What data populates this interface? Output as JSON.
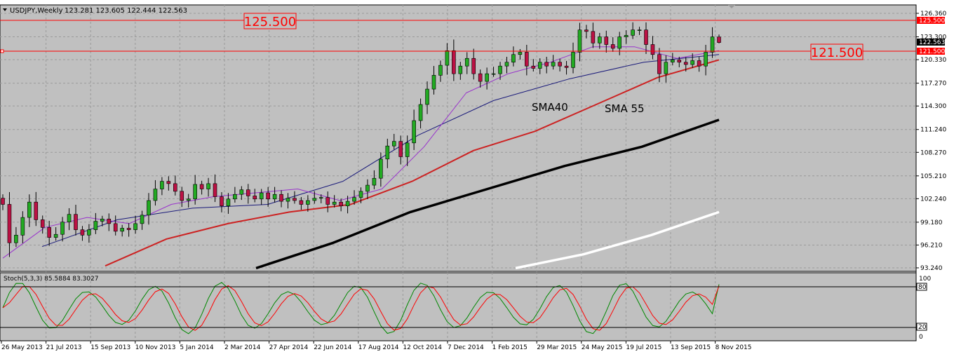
{
  "header": {
    "symbol_label": "USDJPY,Weekly",
    "ohlc_label": "123.281 123.605 122.444 122.563"
  },
  "annotations": {
    "line_high": "125.500",
    "line_low": "121.500",
    "sma40_label": "SMA40",
    "sma55_label": "SMA 55"
  },
  "price_axis": {
    "ticks": [
      "126.360",
      "123.300",
      "120.330",
      "117.270",
      "114.300",
      "111.240",
      "108.270",
      "105.210",
      "102.240",
      "99.180",
      "96.210",
      "93.240"
    ],
    "tag_high": "125.500",
    "tag_current": "122.563",
    "tag_low": "121.500"
  },
  "stoch": {
    "label": "Stoch(5,3,3) 85.5884 83.3027",
    "ticks": [
      "100",
      "80",
      "20",
      "0"
    ]
  },
  "time_axis": {
    "labels": [
      "26 May 2013",
      "21 Jul 2013",
      "15 Sep 2013",
      "10 Nov 2013",
      "5 Jan 2014",
      "2 Mar 2014",
      "27 Apr 2014",
      "22 Jun 2014",
      "17 Aug 2014",
      "12 Oct 2014",
      "7 Dec 2014",
      "1 Feb 2015",
      "29 Mar 2015",
      "24 May 2015",
      "19 Jul 2015",
      "13 Sep 2015",
      "8 Nov 2015"
    ]
  },
  "colors": {
    "background": "#c0c0c0",
    "bull_candle": "#22aa22",
    "bear_candle": "#bb1144",
    "level_line": "#ff0000",
    "sma_purple": "#9933cc",
    "sma_navy": "#1a1a7a",
    "sma_red": "#cc2222",
    "sma_black": "#000000",
    "sma_white": "#ffffff",
    "stoch_main": "#008800",
    "stoch_signal": "#ff0000"
  },
  "chart_data": {
    "type": "candlestick",
    "symbol": "USDJPY",
    "timeframe": "Weekly",
    "last_ohlc": {
      "open": 123.281,
      "high": 123.605,
      "low": 122.444,
      "close": 122.563
    },
    "ylim": [
      93.24,
      126.36
    ],
    "horizontal_levels": [
      125.5,
      121.5
    ],
    "closes": [
      101.5,
      96.5,
      97.5,
      99.8,
      101.8,
      99.5,
      98.5,
      97.2,
      97.6,
      99.2,
      100.2,
      98.2,
      97.5,
      98.2,
      99.3,
      99.6,
      99.0,
      98.0,
      98.4,
      98.2,
      99.0,
      100.1,
      102.0,
      103.5,
      104.5,
      104.2,
      103.2,
      102.0,
      102.2,
      104.1,
      103.5,
      104.2,
      102.5,
      101.3,
      102.2,
      102.8,
      103.4,
      102.6,
      102.2,
      103.0,
      102.2,
      102.8,
      101.9,
      102.3,
      102.0,
      101.5,
      102.0,
      102.3,
      102.4,
      101.5,
      101.8,
      101.3,
      101.9,
      102.4,
      103.2,
      104.0,
      104.9,
      107.4,
      109.1,
      109.7,
      107.7,
      109.5,
      112.4,
      114.5,
      116.5,
      118.3,
      119.6,
      121.5,
      118.5,
      119.5,
      120.5,
      118.5,
      117.5,
      118.5,
      118.5,
      119.5,
      120.0,
      121.0,
      121.3,
      119.5,
      119.2,
      120.0,
      119.5,
      120.0,
      119.5,
      119.3,
      121.3,
      124.2,
      124.0,
      122.5,
      123.3,
      122.3,
      121.8,
      123.3,
      123.5,
      124.2,
      124.2,
      122.3,
      121.0,
      118.5,
      120.0,
      120.3,
      120.0,
      119.7,
      120.2,
      119.5,
      121.3,
      123.3,
      122.563
    ],
    "moving_averages": [
      {
        "name": "SMA40",
        "label_on_chart": "SMA40",
        "values_sampled": [
          96.0,
          99.5,
          101.0,
          101.5,
          104.5,
          110.5,
          115.0,
          117.8,
          120.0,
          121.0
        ]
      },
      {
        "name": "SMA 55",
        "label_on_chart": "SMA 55",
        "values_sampled": [
          93.5,
          97.0,
          99.0,
          100.5,
          101.5,
          104.5,
          108.5,
          111.0,
          114.5,
          118.0,
          120.3
        ]
      },
      {
        "values_sampled": [
          93.2,
          96.5,
          100.5,
          103.5,
          106.5,
          109.0,
          112.5
        ]
      },
      {
        "values_sampled": [
          93.2,
          95.0,
          97.5,
          100.5
        ]
      }
    ],
    "stochastic": {
      "params": "5,3,3",
      "main": 85.5884,
      "signal": 83.3027,
      "levels": [
        80,
        20
      ],
      "ylim": [
        0,
        100
      ]
    }
  }
}
